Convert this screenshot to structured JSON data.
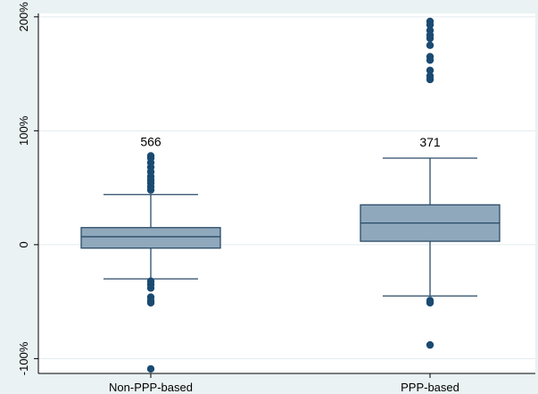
{
  "chart_data": {
    "type": "box",
    "title": "",
    "xlabel": "",
    "ylabel": "",
    "ylim": [
      -113,
      203
    ],
    "yticks": [
      {
        "value": 200,
        "label": "200%"
      },
      {
        "value": 100,
        "label": "100%"
      },
      {
        "value": 0,
        "label": "0"
      },
      {
        "value": -100,
        "label": "-100%"
      }
    ],
    "grid": true,
    "categories": [
      "Non-PPP-based",
      "PPP-based"
    ],
    "boxes": [
      {
        "category": "Non-PPP-based",
        "count_label": "566",
        "whisker_low": -30,
        "q1": -3,
        "median": 7,
        "q3": 15,
        "whisker_high": 44,
        "outliers": [
          78,
          76,
          72,
          68,
          64,
          60,
          57,
          54,
          51,
          48,
          -32,
          -35,
          -38,
          -46,
          -49,
          -51,
          -109
        ]
      },
      {
        "category": "PPP-based",
        "count_label": "371",
        "whisker_low": -45,
        "q1": 3,
        "median": 19,
        "q3": 35,
        "whisker_high": 76,
        "outliers": [
          196,
          193,
          188,
          184,
          181,
          175,
          165,
          162,
          153,
          148,
          145,
          -49,
          -51,
          -88
        ]
      }
    ],
    "colors": {
      "background": "#eaf2f3",
      "plot_background": "#ffffff",
      "box_fill": "#8fa8bc",
      "box_stroke": "#2a4a66",
      "outlier": "#1a4a72",
      "grid": "#e3ebef",
      "axis": "#000000"
    }
  }
}
